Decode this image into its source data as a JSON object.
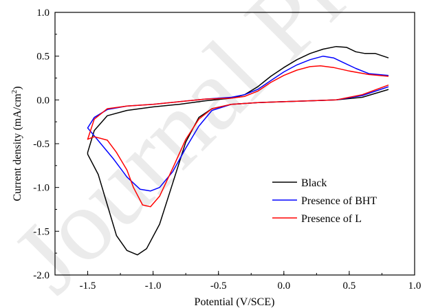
{
  "watermark": "Journal Pre-proof",
  "chart_data": {
    "type": "line",
    "title": "",
    "xlabel": "Potential (V/SCE)",
    "ylabel_base": "Current density (mA/cm",
    "ylabel_sup": "2",
    "ylabel_end": ")",
    "xlim": [
      -1.75,
      1.0
    ],
    "ylim": [
      -2.0,
      1.0
    ],
    "x_ticks": [
      -1.5,
      -1.0,
      -0.5,
      0.0,
      0.5,
      1.0
    ],
    "x_tick_labels": [
      "-1.5",
      "-1.0",
      "-0.5",
      "0.0",
      "0.5",
      "1.0"
    ],
    "y_ticks": [
      -2.0,
      -1.5,
      -1.0,
      -0.5,
      0.0,
      0.5,
      1.0
    ],
    "y_tick_labels": [
      "-2.0",
      "-1.5",
      "-1.0",
      "-0.5",
      "0.0",
      "0.5",
      "1.0"
    ],
    "grid": false,
    "legend_position": "lower-right",
    "series": [
      {
        "name": "Black",
        "color": "#000000",
        "points": [
          [
            0.8,
            0.12
          ],
          [
            0.6,
            0.03
          ],
          [
            0.4,
            0.0
          ],
          [
            0.2,
            -0.01
          ],
          [
            0.0,
            -0.02
          ],
          [
            -0.2,
            -0.03
          ],
          [
            -0.4,
            -0.05
          ],
          [
            -0.55,
            -0.1
          ],
          [
            -0.65,
            -0.2
          ],
          [
            -0.75,
            -0.48
          ],
          [
            -0.85,
            -0.95
          ],
          [
            -0.95,
            -1.42
          ],
          [
            -1.05,
            -1.7
          ],
          [
            -1.12,
            -1.77
          ],
          [
            -1.2,
            -1.72
          ],
          [
            -1.28,
            -1.55
          ],
          [
            -1.35,
            -1.2
          ],
          [
            -1.42,
            -0.85
          ],
          [
            -1.5,
            -0.62
          ],
          [
            -1.5,
            -0.6
          ],
          [
            -1.45,
            -0.35
          ],
          [
            -1.35,
            -0.18
          ],
          [
            -1.2,
            -0.12
          ],
          [
            -1.0,
            -0.08
          ],
          [
            -0.8,
            -0.05
          ],
          [
            -0.6,
            -0.01
          ],
          [
            -0.4,
            0.02
          ],
          [
            -0.3,
            0.06
          ],
          [
            -0.2,
            0.15
          ],
          [
            -0.1,
            0.27
          ],
          [
            0.0,
            0.37
          ],
          [
            0.1,
            0.46
          ],
          [
            0.2,
            0.53
          ],
          [
            0.3,
            0.58
          ],
          [
            0.4,
            0.61
          ],
          [
            0.48,
            0.6
          ],
          [
            0.55,
            0.55
          ],
          [
            0.62,
            0.53
          ],
          [
            0.7,
            0.53
          ],
          [
            0.8,
            0.48
          ]
        ]
      },
      {
        "name": "Presence of BHT",
        "color": "#0000ff",
        "points": [
          [
            0.8,
            0.15
          ],
          [
            0.6,
            0.05
          ],
          [
            0.4,
            0.0
          ],
          [
            0.2,
            -0.01
          ],
          [
            0.0,
            -0.02
          ],
          [
            -0.2,
            -0.03
          ],
          [
            -0.4,
            -0.05
          ],
          [
            -0.55,
            -0.12
          ],
          [
            -0.65,
            -0.3
          ],
          [
            -0.75,
            -0.55
          ],
          [
            -0.85,
            -0.82
          ],
          [
            -0.95,
            -1.0
          ],
          [
            -1.02,
            -1.04
          ],
          [
            -1.1,
            -1.02
          ],
          [
            -1.2,
            -0.88
          ],
          [
            -1.3,
            -0.68
          ],
          [
            -1.4,
            -0.5
          ],
          [
            -1.5,
            -0.32
          ],
          [
            -1.5,
            -0.32
          ],
          [
            -1.45,
            -0.2
          ],
          [
            -1.35,
            -0.11
          ],
          [
            -1.2,
            -0.07
          ],
          [
            -1.0,
            -0.05
          ],
          [
            -0.8,
            -0.02
          ],
          [
            -0.6,
            0.01
          ],
          [
            -0.4,
            0.03
          ],
          [
            -0.3,
            0.06
          ],
          [
            -0.2,
            0.12
          ],
          [
            -0.1,
            0.22
          ],
          [
            0.0,
            0.32
          ],
          [
            0.1,
            0.4
          ],
          [
            0.2,
            0.46
          ],
          [
            0.3,
            0.5
          ],
          [
            0.38,
            0.48
          ],
          [
            0.45,
            0.43
          ],
          [
            0.55,
            0.36
          ],
          [
            0.65,
            0.3
          ],
          [
            0.8,
            0.28
          ]
        ]
      },
      {
        "name": "Presence of L",
        "color": "#ff0000",
        "points": [
          [
            0.8,
            0.17
          ],
          [
            0.6,
            0.06
          ],
          [
            0.4,
            0.0
          ],
          [
            0.2,
            -0.01
          ],
          [
            0.0,
            -0.02
          ],
          [
            -0.2,
            -0.03
          ],
          [
            -0.4,
            -0.05
          ],
          [
            -0.55,
            -0.1
          ],
          [
            -0.65,
            -0.22
          ],
          [
            -0.75,
            -0.45
          ],
          [
            -0.85,
            -0.78
          ],
          [
            -0.95,
            -1.1
          ],
          [
            -1.02,
            -1.22
          ],
          [
            -1.08,
            -1.2
          ],
          [
            -1.15,
            -1.0
          ],
          [
            -1.2,
            -0.8
          ],
          [
            -1.28,
            -0.6
          ],
          [
            -1.35,
            -0.46
          ],
          [
            -1.45,
            -0.42
          ],
          [
            -1.5,
            -0.45
          ],
          [
            -1.5,
            -0.45
          ],
          [
            -1.45,
            -0.22
          ],
          [
            -1.35,
            -0.1
          ],
          [
            -1.2,
            -0.07
          ],
          [
            -1.0,
            -0.05
          ],
          [
            -0.8,
            -0.02
          ],
          [
            -0.6,
            0.01
          ],
          [
            -0.4,
            0.02
          ],
          [
            -0.3,
            0.04
          ],
          [
            -0.2,
            0.1
          ],
          [
            -0.1,
            0.2
          ],
          [
            0.0,
            0.28
          ],
          [
            0.1,
            0.34
          ],
          [
            0.2,
            0.38
          ],
          [
            0.28,
            0.39
          ],
          [
            0.38,
            0.37
          ],
          [
            0.5,
            0.33
          ],
          [
            0.65,
            0.29
          ],
          [
            0.8,
            0.27
          ]
        ]
      }
    ]
  }
}
